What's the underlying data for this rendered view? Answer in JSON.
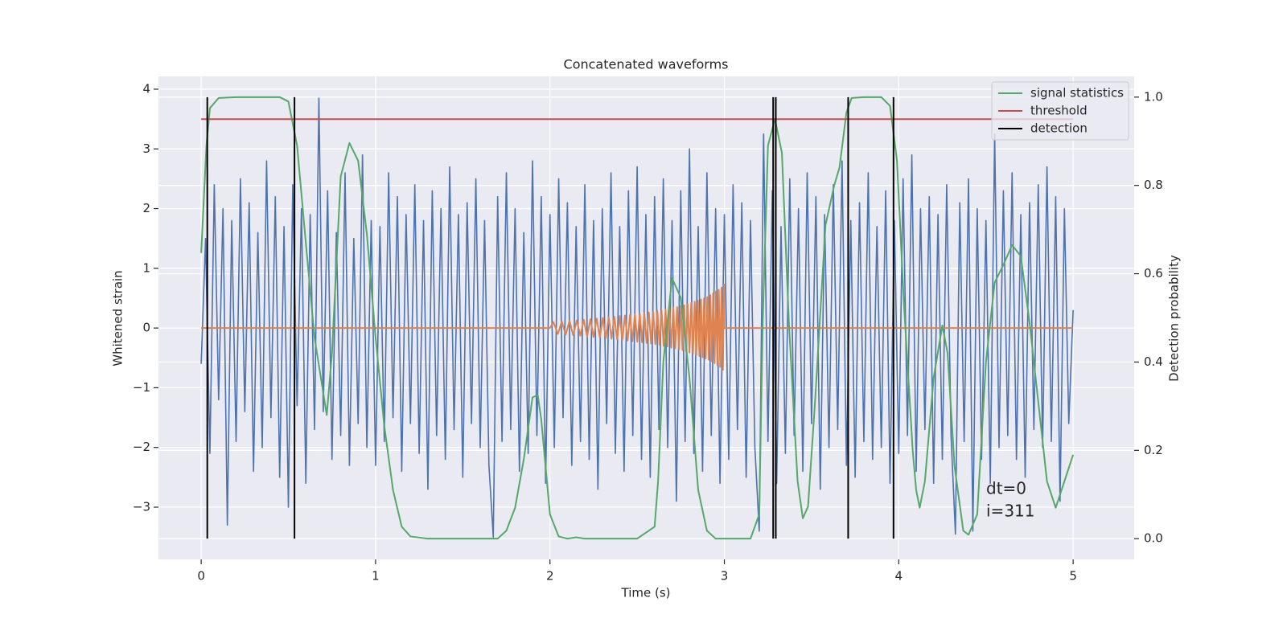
{
  "chart_data": {
    "type": "line",
    "title": "Concatenated waveforms",
    "xlabel": "Time (s)",
    "ylabel": "Whitened strain",
    "y2label": "Detection probability",
    "xlim": [
      -0.245,
      5.35
    ],
    "ylim": [
      -3.875,
      4.215
    ],
    "y2lim": [
      -0.047,
      1.047
    ],
    "xticks": [
      0,
      1,
      2,
      3,
      4,
      5
    ],
    "yticks": [
      {
        "value": -3,
        "label": "−3"
      },
      {
        "value": -2,
        "label": "−2"
      },
      {
        "value": -1,
        "label": "−1"
      },
      0,
      1,
      2,
      3,
      4
    ],
    "y2ticks": [
      {
        "value": 0,
        "label": "0.0"
      },
      0.2,
      0.4,
      0.6,
      0.8,
      {
        "value": 1,
        "label": "1.0"
      }
    ],
    "grid": true,
    "legend": "upper right",
    "annotations": [
      "dt=0",
      "i=311"
    ],
    "series": [
      {
        "color": "#4c72b0",
        "x": [
          0,
          0.025,
          0.05,
          0.075,
          0.1,
          0.125,
          0.15,
          0.175,
          0.2,
          0.225,
          0.25,
          0.275,
          0.3,
          0.325,
          0.35,
          0.375,
          0.4,
          0.425,
          0.45,
          0.475,
          0.5,
          0.525,
          0.55,
          0.575,
          0.6,
          0.625,
          0.65,
          0.675,
          0.7,
          0.725,
          0.75,
          0.775,
          0.8,
          0.825,
          0.85,
          0.875,
          0.9,
          0.925,
          0.95,
          0.975,
          1,
          1.025,
          1.05,
          1.075,
          1.1,
          1.125,
          1.15,
          1.175,
          1.2,
          1.225,
          1.25,
          1.275,
          1.3,
          1.325,
          1.35,
          1.375,
          1.4,
          1.425,
          1.45,
          1.475,
          1.5,
          1.525,
          1.55,
          1.575,
          1.6,
          1.625,
          1.65,
          1.675,
          1.7,
          1.725,
          1.75,
          1.775,
          1.8,
          1.825,
          1.85,
          1.875,
          1.9,
          1.925,
          1.95,
          1.975,
          2,
          2.025,
          2.05,
          2.075,
          2.1,
          2.125,
          2.15,
          2.175,
          2.2,
          2.225,
          2.25,
          2.275,
          2.3,
          2.325,
          2.35,
          2.375,
          2.4,
          2.425,
          2.45,
          2.475,
          2.5,
          2.525,
          2.55,
          2.575,
          2.6,
          2.625,
          2.65,
          2.675,
          2.7,
          2.725,
          2.75,
          2.775,
          2.8,
          2.825,
          2.85,
          2.875,
          2.9,
          2.925,
          2.95,
          2.975,
          3,
          3.025,
          3.05,
          3.075,
          3.1,
          3.125,
          3.15,
          3.175,
          3.2,
          3.225,
          3.25,
          3.275,
          3.3,
          3.325,
          3.35,
          3.375,
          3.4,
          3.425,
          3.45,
          3.475,
          3.5,
          3.525,
          3.55,
          3.575,
          3.6,
          3.625,
          3.65,
          3.675,
          3.7,
          3.725,
          3.75,
          3.775,
          3.8,
          3.825,
          3.85,
          3.875,
          3.9,
          3.925,
          3.95,
          3.975,
          4,
          4.025,
          4.05,
          4.075,
          4.1,
          4.125,
          4.15,
          4.175,
          4.2,
          4.225,
          4.25,
          4.275,
          4.3,
          4.325,
          4.35,
          4.375,
          4.4,
          4.425,
          4.45,
          4.475,
          4.5,
          4.525,
          4.55,
          4.575,
          4.6,
          4.625,
          4.65,
          4.675,
          4.7,
          4.725,
          4.75,
          4.775,
          4.8,
          4.825,
          4.85,
          4.875,
          4.9,
          4.925,
          4.95,
          4.975,
          5
        ],
        "values": [
          -0.6,
          1.5,
          -2.1,
          2.4,
          -1.2,
          2.0,
          -3.3,
          1.8,
          -1.9,
          2.5,
          -1.4,
          2.1,
          -2.4,
          1.6,
          -2.0,
          2.8,
          -1.5,
          2.2,
          -2.5,
          1.7,
          -3.0,
          2.4,
          -1.3,
          2.0,
          -2.6,
          1.9,
          -1.7,
          3.85,
          -1.4,
          2.3,
          -2.2,
          1.6,
          -1.8,
          2.6,
          -2.3,
          1.5,
          -1.6,
          2.9,
          -2.0,
          1.8,
          -2.3,
          1.7,
          -1.9,
          2.6,
          -1.5,
          2.2,
          -2.4,
          1.9,
          -1.6,
          2.4,
          -2.1,
          1.8,
          -2.7,
          2.3,
          -1.8,
          2.0,
          -2.2,
          2.7,
          -1.7,
          1.9,
          -2.5,
          2.1,
          -1.6,
          2.5,
          -2.0,
          1.8,
          -2.3,
          -3.5,
          2.2,
          -1.9,
          2.6,
          -1.7,
          2.0,
          -2.4,
          1.6,
          -2.1,
          2.8,
          -1.8,
          2.2,
          -2.6,
          1.9,
          -2.0,
          2.5,
          -1.5,
          2.1,
          -2.3,
          1.7,
          -1.9,
          2.4,
          -2.2,
          1.8,
          -2.7,
          2.0,
          -1.6,
          2.6,
          -2.1,
          1.7,
          -2.4,
          2.3,
          -1.8,
          2.7,
          -2.2,
          1.9,
          -2.5,
          2.2,
          -1.7,
          2.5,
          -2.0,
          1.8,
          -2.9,
          2.3,
          -1.9,
          3.0,
          -2.1,
          1.7,
          -2.4,
          2.6,
          -1.8,
          2.0,
          -2.6,
          1.9,
          -2.2,
          2.4,
          -1.7,
          2.1,
          -2.5,
          1.8,
          -2.0,
          -3.4,
          3.25,
          -1.9,
          2.3,
          -2.6,
          1.7,
          -2.1,
          2.5,
          -1.8,
          2.0,
          -2.4,
          2.6,
          -1.6,
          2.2,
          -2.7,
          1.9,
          -2.0,
          2.4,
          -1.7,
          2.8,
          -2.3,
          1.8,
          -2.5,
          2.1,
          -1.9,
          2.6,
          -2.2,
          1.7,
          -2.0,
          2.3,
          -2.6,
          1.8,
          -2.1,
          2.5,
          -1.8,
          2.9,
          -2.4,
          2.0,
          -1.7,
          2.2,
          -2.6,
          1.9,
          -2.2,
          2.4,
          -1.8,
          -3.45,
          2.1,
          -1.9,
          2.5,
          -3.4,
          2.0,
          -2.2,
          1.8,
          -2.6,
          3.25,
          -2.0,
          2.3,
          -1.8,
          2.6,
          -2.2,
          1.9,
          -2.5,
          2.1,
          -1.7,
          2.4,
          -2.0,
          2.7,
          -1.9,
          2.2,
          -2.9,
          2.0,
          -1.6,
          0.3
        ]
      },
      {
        "color": "#dd8452",
        "x": [
          0,
          2.0,
          2.02,
          2.045,
          2.068,
          2.09,
          2.112,
          2.133,
          2.154,
          2.174,
          2.194,
          2.213,
          2.232,
          2.25,
          2.268,
          2.286,
          2.303,
          2.32,
          2.337,
          2.353,
          2.369,
          2.385,
          2.4,
          2.415,
          2.43,
          2.445,
          2.459,
          2.473,
          2.487,
          2.501,
          2.515,
          2.528,
          2.541,
          2.554,
          2.567,
          2.58,
          2.592,
          2.604,
          2.616,
          2.628,
          2.64,
          2.652,
          2.663,
          2.674,
          2.685,
          2.696,
          2.707,
          2.718,
          2.729,
          2.74,
          2.75,
          2.76,
          2.77,
          2.78,
          2.79,
          2.8,
          2.81,
          2.82,
          2.83,
          2.839,
          2.848,
          2.857,
          2.866,
          2.875,
          2.884,
          2.893,
          2.902,
          2.911,
          2.92,
          2.928,
          2.936,
          2.944,
          2.952,
          2.96,
          2.968,
          2.976,
          2.984,
          2.992,
          2.998,
          3.0,
          5.0
        ],
        "values": [
          0,
          0,
          0.1,
          -0.1,
          0.11,
          -0.11,
          0.12,
          -0.12,
          0.13,
          -0.13,
          0.14,
          -0.14,
          0.15,
          -0.15,
          0.16,
          -0.16,
          0.17,
          -0.17,
          0.18,
          -0.18,
          0.19,
          -0.19,
          0.2,
          -0.2,
          0.21,
          -0.21,
          0.22,
          -0.22,
          0.23,
          -0.23,
          0.24,
          -0.24,
          0.25,
          -0.25,
          0.26,
          -0.26,
          0.27,
          -0.27,
          0.28,
          -0.28,
          0.29,
          -0.3,
          0.31,
          -0.31,
          0.32,
          -0.33,
          0.34,
          -0.34,
          0.35,
          -0.36,
          0.37,
          -0.37,
          0.38,
          -0.39,
          0.4,
          -0.41,
          0.42,
          -0.43,
          0.44,
          -0.45,
          0.46,
          -0.47,
          0.48,
          -0.49,
          0.5,
          -0.51,
          0.52,
          -0.53,
          0.55,
          -0.56,
          0.58,
          -0.59,
          0.61,
          -0.62,
          0.64,
          -0.65,
          0.68,
          -0.7,
          0.73,
          0,
          0
        ]
      },
      {
        "name": "signal statistics",
        "color": "#55a868",
        "axis": "y2",
        "x": [
          0,
          0.03,
          0.05,
          0.1,
          0.2,
          0.3,
          0.45,
          0.5,
          0.55,
          0.6,
          0.65,
          0.72,
          0.75,
          0.8,
          0.85,
          0.9,
          0.95,
          1.0,
          1.05,
          1.1,
          1.15,
          1.2,
          1.3,
          1.5,
          1.7,
          1.75,
          1.8,
          1.85,
          1.9,
          1.93,
          1.95,
          2.0,
          2.05,
          2.1,
          2.15,
          2.2,
          2.5,
          2.6,
          2.62,
          2.65,
          2.7,
          2.75,
          2.8,
          2.85,
          2.9,
          2.95,
          3.15,
          3.2,
          3.22,
          3.25,
          3.29,
          3.33,
          3.37,
          3.42,
          3.45,
          3.48,
          3.52,
          3.58,
          3.63,
          3.66,
          3.7,
          3.73,
          3.8,
          3.9,
          3.95,
          3.99,
          4.03,
          4.08,
          4.1,
          4.12,
          4.15,
          4.2,
          4.25,
          4.28,
          4.32,
          4.37,
          4.4,
          4.45,
          4.5,
          4.55,
          4.6,
          4.65,
          4.7,
          4.75,
          4.8,
          4.85,
          4.9,
          4.95,
          5.0
        ],
        "values": [
          0.647,
          0.89,
          0.975,
          0.998,
          1.0,
          1.0,
          1.0,
          0.99,
          0.89,
          0.67,
          0.455,
          0.28,
          0.42,
          0.82,
          0.896,
          0.856,
          0.69,
          0.455,
          0.255,
          0.11,
          0.027,
          0.005,
          0.0,
          0.0,
          0.0,
          0.018,
          0.07,
          0.18,
          0.32,
          0.325,
          0.27,
          0.055,
          0.005,
          0.0,
          0.003,
          0.0,
          0.0,
          0.027,
          0.13,
          0.4,
          0.59,
          0.546,
          0.364,
          0.11,
          0.018,
          0.0,
          0.0,
          0.055,
          0.49,
          0.89,
          0.95,
          0.874,
          0.49,
          0.13,
          0.046,
          0.073,
          0.31,
          0.71,
          0.8,
          0.84,
          0.965,
          0.998,
          1.0,
          1.0,
          0.98,
          0.856,
          0.53,
          0.2,
          0.11,
          0.07,
          0.13,
          0.364,
          0.483,
          0.42,
          0.164,
          0.018,
          0.009,
          0.055,
          0.4,
          0.58,
          0.62,
          0.665,
          0.64,
          0.49,
          0.31,
          0.13,
          0.07,
          0.13,
          0.19
        ]
      },
      {
        "name": "threshold",
        "color": "#c44e52",
        "axis": "y2",
        "x": [
          0,
          5
        ],
        "values": [
          0.95,
          0.95
        ]
      },
      {
        "name": "detection",
        "color": "#000000",
        "axis": "y2",
        "kind": "vlines",
        "x": [
          0.035,
          0.535,
          3.28,
          3.295,
          3.71,
          3.97
        ],
        "ymin": 0,
        "ymax": 1
      }
    ]
  }
}
